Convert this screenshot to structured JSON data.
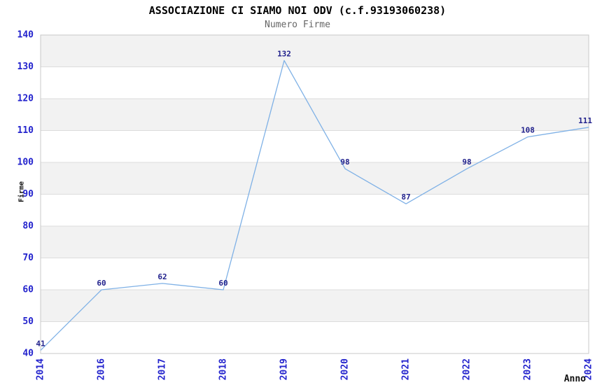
{
  "chart_data": {
    "type": "line",
    "title": "ASSOCIAZIONE CI SIAMO NOI ODV (c.f.93193060238)",
    "subtitle": "Numero Firme",
    "xlabel": "Anno",
    "ylabel": "Firme",
    "categories": [
      "2014",
      "2016",
      "2017",
      "2018",
      "2019",
      "2020",
      "2021",
      "2022",
      "2023",
      "2024"
    ],
    "values": [
      41,
      60,
      62,
      60,
      132,
      98,
      87,
      98,
      108,
      111
    ],
    "ylim": [
      40,
      140
    ],
    "ytick_step": 10,
    "grid": "horizontal",
    "background_bands": "alternating-gray",
    "legend": "none",
    "markers": "none",
    "colors": {
      "line": "#7FB1E6",
      "value_label": "#21218C",
      "tick_label": "#2323CD",
      "band": "#F2F2F2",
      "grid_line": "#DCDCDC",
      "plot_border": "#C8C8C8",
      "title": "#000000",
      "subtitle": "#666666"
    }
  }
}
